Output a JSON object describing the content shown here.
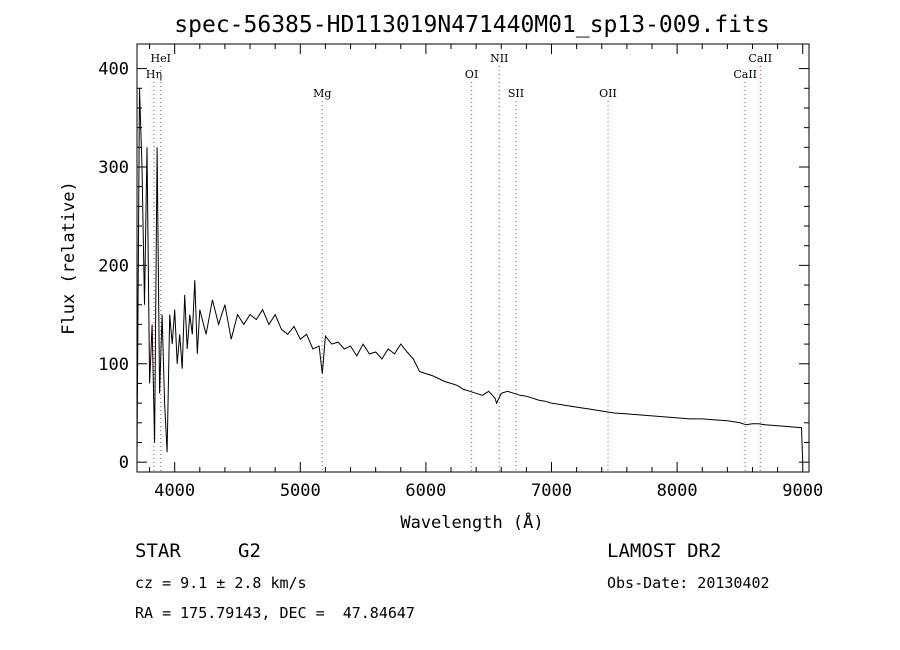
{
  "chart_data": {
    "type": "line",
    "title": "spec-56385-HD113019N471440M01_sp13-009.fits",
    "xlabel": "Wavelength (Å)",
    "ylabel": "Flux (relative)",
    "xlim": [
      3700,
      9050
    ],
    "ylim": [
      -10,
      425
    ],
    "x_ticks": [
      4000,
      5000,
      6000,
      7000,
      8000,
      9000
    ],
    "y_ticks": [
      0,
      100,
      200,
      300,
      400
    ],
    "grid": false,
    "legend": "none",
    "spectral_lines": [
      {
        "name": "Hη",
        "wavelength": 3835,
        "row": 2
      },
      {
        "name": "HeI",
        "wavelength": 3889,
        "row": 1
      },
      {
        "name": "Mg",
        "wavelength": 5175,
        "row": 3
      },
      {
        "name": "OI",
        "wavelength": 6364,
        "row": 2
      },
      {
        "name": "NII",
        "wavelength": 6584,
        "row": 1
      },
      {
        "name": "SII",
        "wavelength": 6717,
        "row": 3
      },
      {
        "name": "OII",
        "wavelength": 7450,
        "row": 3
      },
      {
        "name": "CaII",
        "wavelength": 8542,
        "row": 2
      },
      {
        "name": "CaII",
        "wavelength": 8662,
        "row": 1
      }
    ],
    "series": [
      {
        "x": [
          3700,
          3720,
          3740,
          3760,
          3780,
          3800,
          3820,
          3840,
          3860,
          3880,
          3900,
          3920,
          3940,
          3960,
          3980,
          4000,
          4020,
          4040,
          4060,
          4080,
          4100,
          4120,
          4140,
          4160,
          4180,
          4200,
          4250,
          4300,
          4350,
          4400,
          4450,
          4500,
          4550,
          4600,
          4650,
          4700,
          4750,
          4800,
          4850,
          4900,
          4950,
          5000,
          5050,
          5100,
          5150,
          5175,
          5200,
          5250,
          5300,
          5350,
          5400,
          5450,
          5500,
          5550,
          5600,
          5650,
          5700,
          5750,
          5800,
          5850,
          5900,
          5950,
          6000,
          6050,
          6100,
          6150,
          6200,
          6250,
          6300,
          6350,
          6400,
          6450,
          6500,
          6550,
          6563,
          6600,
          6650,
          6700,
          6750,
          6800,
          6850,
          6900,
          6950,
          7000,
          7100,
          7200,
          7300,
          7400,
          7500,
          7600,
          7700,
          7800,
          7900,
          8000,
          8100,
          8200,
          8300,
          8400,
          8500,
          8550,
          8600,
          8650,
          8700,
          8800,
          8900,
          8990,
          9000
        ],
        "y": [
          5,
          380,
          300,
          160,
          320,
          80,
          140,
          20,
          320,
          70,
          150,
          60,
          10,
          150,
          120,
          155,
          100,
          130,
          95,
          170,
          115,
          150,
          130,
          185,
          110,
          155,
          130,
          165,
          140,
          160,
          125,
          150,
          140,
          150,
          145,
          155,
          140,
          150,
          135,
          130,
          138,
          125,
          130,
          115,
          118,
          90,
          128,
          120,
          122,
          115,
          118,
          108,
          120,
          110,
          112,
          105,
          115,
          110,
          120,
          112,
          105,
          92,
          90,
          88,
          85,
          82,
          80,
          78,
          74,
          72,
          70,
          68,
          72,
          65,
          60,
          70,
          72,
          70,
          68,
          67,
          65,
          63,
          62,
          60,
          58,
          56,
          54,
          52,
          50,
          49,
          48,
          47,
          46,
          45,
          44,
          44,
          43,
          42,
          40,
          38,
          39,
          39,
          38,
          37,
          36,
          35,
          0
        ]
      }
    ]
  },
  "info": {
    "object_class": "STAR",
    "subclass": "G2",
    "survey": "LAMOST DR2",
    "redshift": "cz = 9.1 ± 2.8 km/s",
    "obs_date": "Obs-Date: 20130402",
    "coords": "RA = 175.79143, DEC =  47.84647"
  }
}
